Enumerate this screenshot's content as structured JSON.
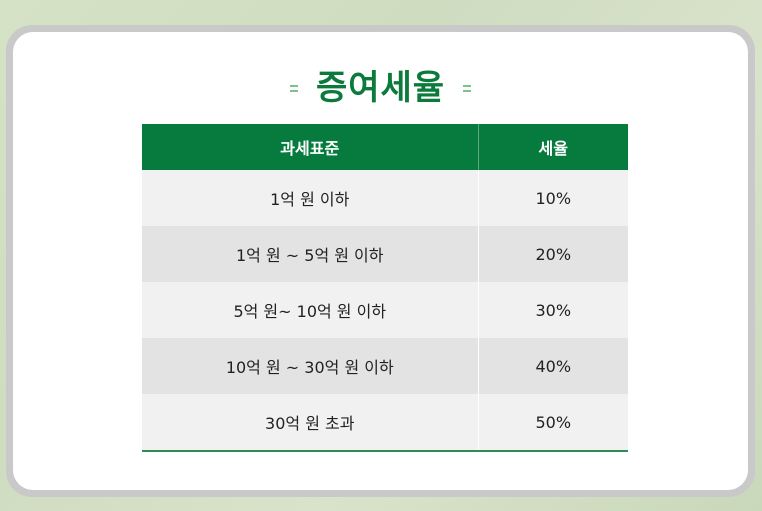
{
  "title": "증여세율",
  "table": {
    "headers": [
      "과세표준",
      "세율"
    ],
    "rows": [
      {
        "base": "1억 원 이하",
        "rate": "10%"
      },
      {
        "base": "1억 원 ~ 5억 원 이하",
        "rate": "20%"
      },
      {
        "base": "5억 원~ 10억 원 이하",
        "rate": "30%"
      },
      {
        "base": "10억 원 ~ 30억 원 이하",
        "rate": "40%"
      },
      {
        "base": "30억 원 초과",
        "rate": "50%"
      }
    ]
  },
  "colors": {
    "brand_green": "#077a3e",
    "title_green": "#0b7a3b",
    "row_light": "#f1f1f1",
    "row_dark": "#e3e3e3"
  }
}
